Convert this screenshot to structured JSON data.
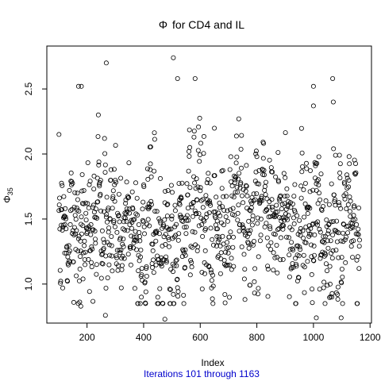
{
  "chart_data": {
    "type": "scatter",
    "title_symbol": "Φ",
    "title_text": "for  CD4  and  IL",
    "xlabel": "Index",
    "ylabel_base": "Φ",
    "ylabel_sub": "35",
    "subtitle": "Iterations 101 through 1163",
    "subtitle_color": "#0000cc",
    "xlim": [
      58,
      1205
    ],
    "ylim": [
      0.7,
      2.83
    ],
    "xticks": [
      200,
      400,
      600,
      800,
      1000,
      1200
    ],
    "xtick_labels": [
      "200",
      "400",
      "600",
      "800",
      "1000",
      "1200"
    ],
    "yticks": [
      1.0,
      1.5,
      2.0,
      2.5
    ],
    "ytick_labels": [
      "1.0",
      "1.5",
      "2.0",
      "2.5"
    ],
    "grid": false,
    "marker": "open-circle",
    "x_range": [
      101,
      1163
    ],
    "notable_points": [
      {
        "x": 101,
        "y": 2.15
      },
      {
        "x": 170,
        "y": 2.52
      },
      {
        "x": 180,
        "y": 2.52
      },
      {
        "x": 268,
        "y": 2.7
      },
      {
        "x": 505,
        "y": 2.74
      },
      {
        "x": 520,
        "y": 2.58
      },
      {
        "x": 582,
        "y": 2.58
      },
      {
        "x": 1000,
        "y": 2.52
      },
      {
        "x": 1068,
        "y": 2.58
      },
      {
        "x": 1000,
        "y": 2.37
      },
      {
        "x": 1070,
        "y": 2.4
      },
      {
        "x": 475,
        "y": 0.73
      },
      {
        "x": 1010,
        "y": 0.74
      },
      {
        "x": 1098,
        "y": 0.74
      },
      {
        "x": 265,
        "y": 0.76
      },
      {
        "x": 178,
        "y": 0.83
      }
    ]
  }
}
